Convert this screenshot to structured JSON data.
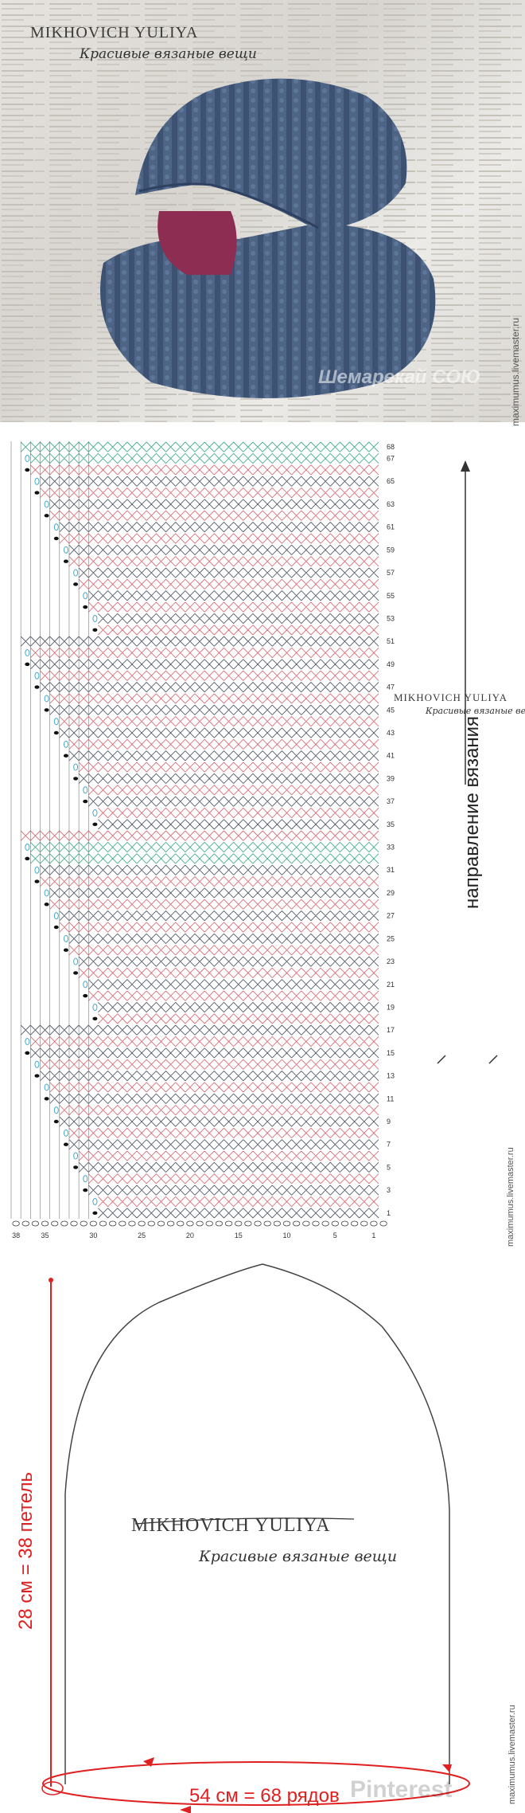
{
  "photo": {
    "brand_name": "MIKHOVICH YULIYA",
    "brand_subtitle": "Красивые вязаные вещи",
    "watermark": "Шемарекай СОЮ",
    "side_url": "maximumus.livemaster.ru"
  },
  "chart": {
    "brand_name": "MIKHOVICH YULIYA",
    "brand_subtitle": "Красивые вязаные вещи",
    "direction_label": "направление вязания",
    "side_url": "maximumus.livemaster.ru",
    "row_labels": [
      "68",
      "67",
      "65",
      "63",
      "61",
      "59",
      "57",
      "55",
      "53",
      "51",
      "49",
      "47",
      "45",
      "43",
      "41",
      "39",
      "37",
      "35",
      "33",
      "31",
      "29",
      "27",
      "25",
      "23",
      "21",
      "19",
      "17",
      "15",
      "13",
      "11",
      "9",
      "7",
      "5",
      "3",
      "1"
    ],
    "column_labels": [
      "38",
      "35",
      "30",
      "25",
      "20",
      "15",
      "10",
      "5",
      "1"
    ]
  },
  "hat": {
    "brand_name": "MIKHOVICH YULIYA",
    "brand_subtitle": "Красивые вязаные вещи",
    "height_label": "28 см = 38 петель",
    "width_label": "54 см = 68 рядов",
    "side_url": "maximumus.livemaster.ru",
    "watermark": "Pinterest"
  },
  "colors": {
    "pink_rows": "#d9707a",
    "grey_rows": "#555e6b",
    "green_rows": "#48b08a",
    "blue_loops": "#46a9c9",
    "measure_red": "#e02020",
    "hat_blue": "#4d6485"
  }
}
